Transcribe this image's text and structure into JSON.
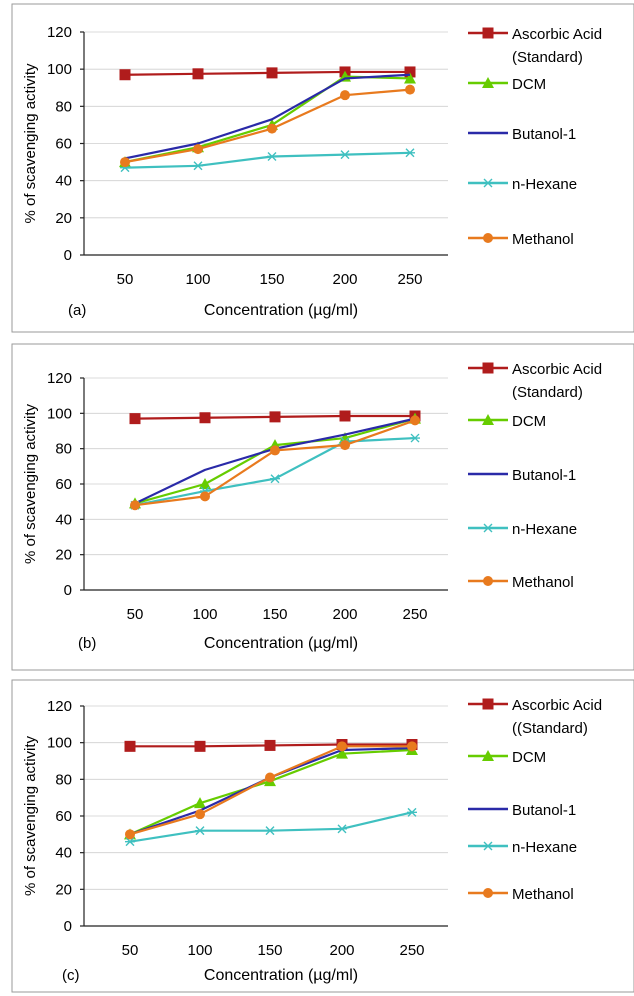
{
  "chart_data": [
    {
      "type": "line",
      "panel_label": "(a)",
      "xlabel": "Concentration (µg/ml)",
      "ylabel": "% of scavenging activity",
      "categories": [
        "50",
        "100",
        "150",
        "200",
        "250"
      ],
      "ylim": [
        0,
        120
      ],
      "yticks": [
        "0",
        "20",
        "40",
        "60",
        "80",
        "100",
        "120"
      ],
      "grid": true,
      "legend_position": "right",
      "series": [
        {
          "name": "Ascorbic Acid (Standard)",
          "legend_lines": [
            "Ascorbic Acid",
            "(Standard)"
          ],
          "color": "#b01c1c",
          "marker": "square",
          "values": [
            97,
            97.5,
            98,
            98.5,
            98.5
          ]
        },
        {
          "name": "DCM",
          "legend_lines": [
            "DCM"
          ],
          "color": "#66cc00",
          "marker": "triangle",
          "values": [
            50,
            58,
            70,
            96,
            95
          ]
        },
        {
          "name": "Butanol-1",
          "legend_lines": [
            "Butanol-1"
          ],
          "color": "#2a2aa8",
          "marker": "none",
          "values": [
            52,
            60,
            73,
            95,
            97
          ]
        },
        {
          "name": "n-Hexane",
          "legend_lines": [
            "n-Hexane"
          ],
          "color": "#3fc0c0",
          "marker": "star",
          "values": [
            47,
            48,
            53,
            54,
            55
          ]
        },
        {
          "name": "Methanol",
          "legend_lines": [
            "Methanol"
          ],
          "color": "#e87a1e",
          "marker": "circle",
          "values": [
            50,
            57,
            68,
            86,
            89
          ]
        }
      ]
    },
    {
      "type": "line",
      "panel_label": "(b)",
      "xlabel": "Concentration (µg/ml)",
      "ylabel": "% of scavenging activity",
      "categories": [
        "50",
        "100",
        "150",
        "200",
        "250"
      ],
      "ylim": [
        0,
        120
      ],
      "yticks": [
        "0",
        "20",
        "40",
        "60",
        "80",
        "100",
        "120"
      ],
      "grid": true,
      "legend_position": "right",
      "series": [
        {
          "name": "Ascorbic Acid (Standard)",
          "legend_lines": [
            "Ascorbic Acid",
            "(Standard)"
          ],
          "color": "#b01c1c",
          "marker": "square",
          "values": [
            97,
            97.5,
            98,
            98.5,
            98.5
          ]
        },
        {
          "name": "DCM",
          "legend_lines": [
            "DCM"
          ],
          "color": "#66cc00",
          "marker": "triangle",
          "values": [
            49,
            60,
            82,
            86,
            97
          ]
        },
        {
          "name": "Butanol-1",
          "legend_lines": [
            "Butanol-1"
          ],
          "color": "#2a2aa8",
          "marker": "none",
          "values": [
            49,
            68,
            80,
            88,
            97
          ]
        },
        {
          "name": "n-Hexane",
          "legend_lines": [
            "n-Hexane"
          ],
          "color": "#3fc0c0",
          "marker": "star",
          "values": [
            48,
            56,
            63,
            84,
            86
          ]
        },
        {
          "name": "Methanol",
          "legend_lines": [
            "Methanol"
          ],
          "color": "#e87a1e",
          "marker": "circle",
          "values": [
            48,
            53,
            79,
            82,
            96
          ]
        }
      ]
    },
    {
      "type": "line",
      "panel_label": "(c)",
      "xlabel": "Concentration (µg/ml)",
      "ylabel": "% of scavenging activity",
      "categories": [
        "50",
        "100",
        "150",
        "200",
        "250"
      ],
      "ylim": [
        0,
        120
      ],
      "yticks": [
        "0",
        "20",
        "40",
        "60",
        "80",
        "100",
        "120"
      ],
      "grid": true,
      "legend_position": "right",
      "series": [
        {
          "name": "Ascorbic Acid (Standard)",
          "legend_lines": [
            "Ascorbic Acid",
            "((Standard)"
          ],
          "color": "#b01c1c",
          "marker": "square",
          "values": [
            98,
            98,
            98.5,
            99,
            99
          ]
        },
        {
          "name": "DCM",
          "legend_lines": [
            "DCM"
          ],
          "color": "#66cc00",
          "marker": "triangle",
          "values": [
            50,
            67,
            79,
            94,
            96
          ]
        },
        {
          "name": "Butanol-1",
          "legend_lines": [
            "Butanol-1"
          ],
          "color": "#2a2aa8",
          "marker": "none",
          "values": [
            50,
            63,
            81,
            96,
            97
          ]
        },
        {
          "name": "n-Hexane",
          "legend_lines": [
            "n-Hexane"
          ],
          "color": "#3fc0c0",
          "marker": "star",
          "values": [
            46,
            52,
            52,
            53,
            62
          ]
        },
        {
          "name": "Methanol",
          "legend_lines": [
            "Methanol"
          ],
          "color": "#e87a1e",
          "marker": "circle",
          "values": [
            50,
            61,
            81,
            98,
            98
          ]
        }
      ]
    }
  ]
}
